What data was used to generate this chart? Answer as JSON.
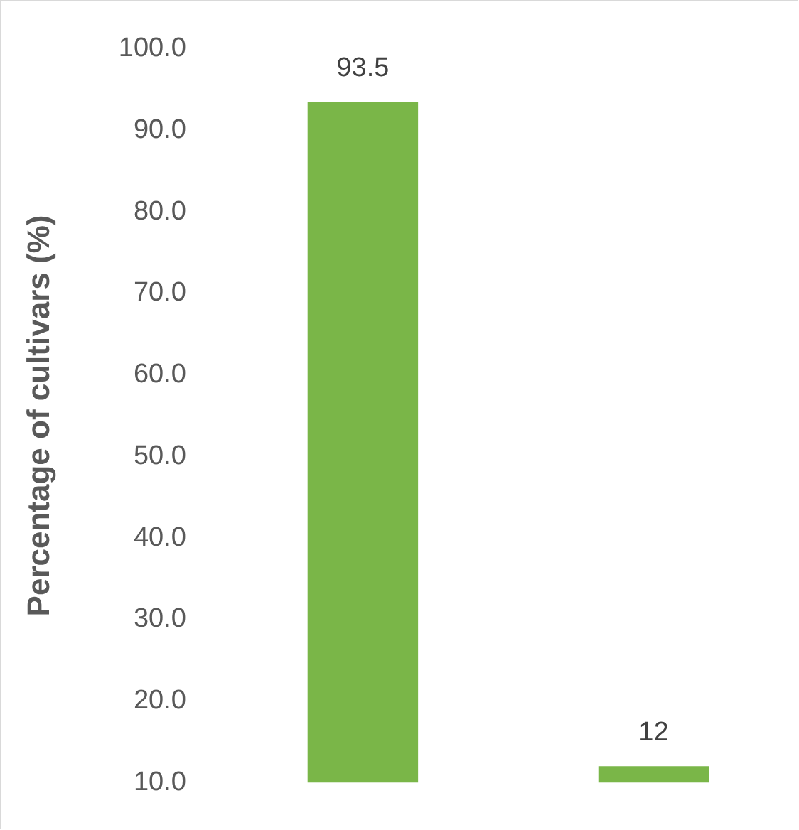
{
  "chart_data": {
    "type": "bar",
    "ylabel": "Percentage of cultivars (%)",
    "categories": [
      null,
      null
    ],
    "values": [
      93.5,
      12
    ],
    "value_labels": [
      "93.5",
      "12"
    ],
    "color": "#7ab648",
    "ylim": [
      10,
      100
    ],
    "yticks": [
      {
        "value": 10,
        "label": "10.0"
      },
      {
        "value": 20,
        "label": "20.0"
      },
      {
        "value": 30,
        "label": "30.0"
      },
      {
        "value": 40,
        "label": "40.0"
      },
      {
        "value": 50,
        "label": "50.0"
      },
      {
        "value": 60,
        "label": "60.0"
      },
      {
        "value": 70,
        "label": "70.0"
      },
      {
        "value": 80,
        "label": "80.0"
      },
      {
        "value": 90,
        "label": "90.0"
      },
      {
        "value": 100,
        "label": "100.0"
      }
    ],
    "grid": false,
    "legend": false
  }
}
